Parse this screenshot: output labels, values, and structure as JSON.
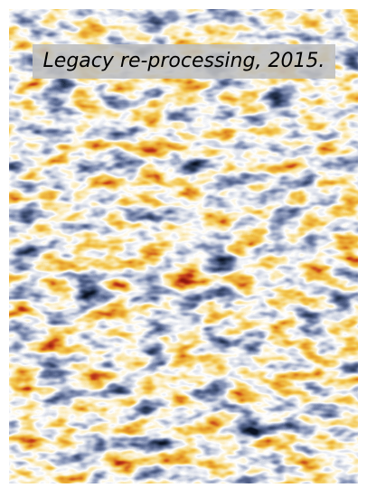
{
  "image": {
    "caption": "Legacy re-processing, 2015.",
    "palette": [
      "#0b1220",
      "#2c3a5a",
      "#56658f",
      "#8f9bbc",
      "#d4d9e6",
      "#ffffff",
      "#fbe7b0",
      "#f2c44a",
      "#e59a28",
      "#c7431c",
      "#8f1710"
    ]
  }
}
